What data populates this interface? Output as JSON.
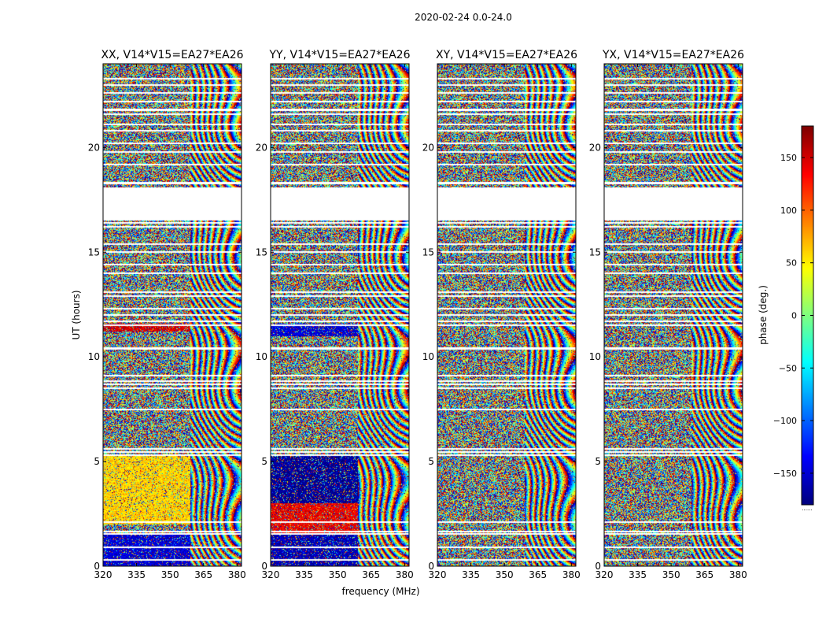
{
  "figure": {
    "suptitle": "2020-02-24 0.0-24.0",
    "ylabel": "UT (hours)",
    "xlabel": "frequency (MHz)",
    "colorbar_label": "phase (deg.)",
    "colorbar_dots": "......"
  },
  "chart_data": [
    {
      "type": "heatmap",
      "title": "XX, V14*V15=EA27*EA26",
      "pol": "XX",
      "xlim": [
        320,
        382
      ],
      "ylim": [
        0,
        24
      ],
      "xticks": [
        320,
        335,
        350,
        365,
        380
      ],
      "yticks": [
        0,
        5,
        10,
        15,
        20
      ],
      "rfi_band_start_mhz": 359,
      "coherent_blocks": [
        {
          "t0": 0.0,
          "t1": 1.5,
          "phase": -150
        },
        {
          "t0": 2.0,
          "t1": 5.3,
          "phase": 60
        },
        {
          "t0": 11.2,
          "t1": 11.6,
          "phase": 150
        }
      ]
    },
    {
      "type": "heatmap",
      "title": "YY, V14*V15=EA27*EA26",
      "pol": "YY",
      "xlim": [
        320,
        382
      ],
      "ylim": [
        0,
        24
      ],
      "xticks": [
        320,
        335,
        350,
        365,
        380
      ],
      "yticks": [
        0,
        5,
        10,
        15,
        20
      ],
      "rfi_band_start_mhz": 359,
      "coherent_blocks": [
        {
          "t0": 0.0,
          "t1": 1.5,
          "phase": -160
        },
        {
          "t0": 1.5,
          "t1": 3.0,
          "phase": 140
        },
        {
          "t0": 3.0,
          "t1": 5.3,
          "phase": -170
        },
        {
          "t0": 11.0,
          "t1": 11.6,
          "phase": -150
        }
      ]
    },
    {
      "type": "heatmap",
      "title": "XY, V14*V15=EA27*EA26",
      "pol": "XY",
      "xlim": [
        320,
        382
      ],
      "ylim": [
        0,
        24
      ],
      "xticks": [
        320,
        335,
        350,
        365,
        380
      ],
      "yticks": [
        0,
        5,
        10,
        15,
        20
      ],
      "rfi_band_start_mhz": 359,
      "coherent_blocks": []
    },
    {
      "type": "heatmap",
      "title": "YX, V14*V15=EA27*EA26",
      "pol": "YX",
      "xlim": [
        320,
        382
      ],
      "ylim": [
        0,
        24
      ],
      "xticks": [
        320,
        335,
        350,
        365,
        380
      ],
      "yticks": [
        0,
        5,
        10,
        15,
        20
      ],
      "rfi_band_start_mhz": 359,
      "coherent_blocks": []
    }
  ],
  "colorbar": {
    "range": [
      -180,
      180
    ],
    "ticks": [
      150,
      100,
      50,
      0,
      -50,
      -100,
      -150
    ],
    "colormap": "jet"
  },
  "time_gaps_hours": [
    [
      16.5,
      18.1
    ]
  ],
  "flag_rows_hours": [
    0.3,
    0.9,
    1.55,
    1.65,
    2.1,
    5.3,
    5.45,
    5.6,
    7.5,
    8.5,
    8.7,
    8.85,
    9.1,
    10.4,
    11.5,
    11.7,
    12.0,
    12.3,
    12.9,
    13.1,
    14.0,
    14.4,
    15.0,
    15.4,
    16.2,
    16.4,
    18.3,
    19.2,
    19.8,
    20.2,
    20.8,
    21.1,
    21.6,
    21.8,
    22.2,
    22.6,
    23.0,
    23.3
  ]
}
